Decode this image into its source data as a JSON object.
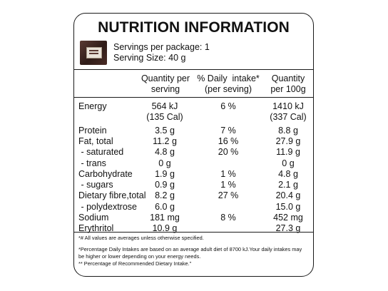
{
  "title": "NUTRITION INFORMATION",
  "servings_per_package": "Servings per package: 1",
  "serving_size": "Serving Size: 40 g",
  "headers": {
    "per_serving": [
      "Quantity per",
      "serving"
    ],
    "daily_intake": [
      "% Daily  intake*",
      "(per seving)"
    ],
    "per_100g": [
      "Quantity",
      "per 100g"
    ]
  },
  "rows": [
    {
      "name": "Energy",
      "per_serving": "564 kJ",
      "daily": "6 %",
      "per_100g": "1410 kJ"
    },
    {
      "name": "",
      "per_serving": "(135 Cal)",
      "daily": "",
      "per_100g": "(337 Cal)"
    },
    {
      "name": "Protein",
      "per_serving": "3.5 g",
      "daily": "7 %",
      "per_100g": "8.8 g"
    },
    {
      "name": "Fat, total",
      "per_serving": "11.2 g",
      "daily": "16 %",
      "per_100g": "27.9 g"
    },
    {
      "name": " - saturated",
      "per_serving": "4.8 g",
      "daily": "20 %",
      "per_100g": "11.9 g"
    },
    {
      "name": " - trans",
      "per_serving": "0 g",
      "daily": "",
      "per_100g": "0 g"
    },
    {
      "name": "Carbohydrate",
      "per_serving": "1.9 g",
      "daily": "1 %",
      "per_100g": "4.8 g"
    },
    {
      "name": " - sugars",
      "per_serving": "0.9 g",
      "daily": "1 %",
      "per_100g": "2.1 g"
    },
    {
      "name": "Dietary fibre,total",
      "per_serving": "8.2 g",
      "daily": "27 %",
      "per_100g": "20.4 g"
    },
    {
      "name": " - polydextrose",
      "per_serving": "6.0 g",
      "daily": "",
      "per_100g": "15.0 g"
    },
    {
      "name": "Sodium",
      "per_serving": "181 mg",
      "daily": "8 %",
      "per_100g": "452 mg"
    },
    {
      "name": "Erythritol",
      "per_serving": "10.9 g",
      "daily": "",
      "per_100g": "27.3 g"
    }
  ],
  "footnotes": [
    "*# All values are averages unless otherwise specified.",
    "*Percentage Daily Intakes are based on an average adult diet of 8700 kJ.Your daily intakes may",
    "be higher or lower depending on your energy needs.",
    "** Percentage of Recommended Dietary Intake.\""
  ],
  "colors": {
    "border": "#1a1a1a",
    "text": "#111111",
    "background": "#ffffff"
  },
  "icons": {
    "product": "product-package-thumbnail"
  }
}
